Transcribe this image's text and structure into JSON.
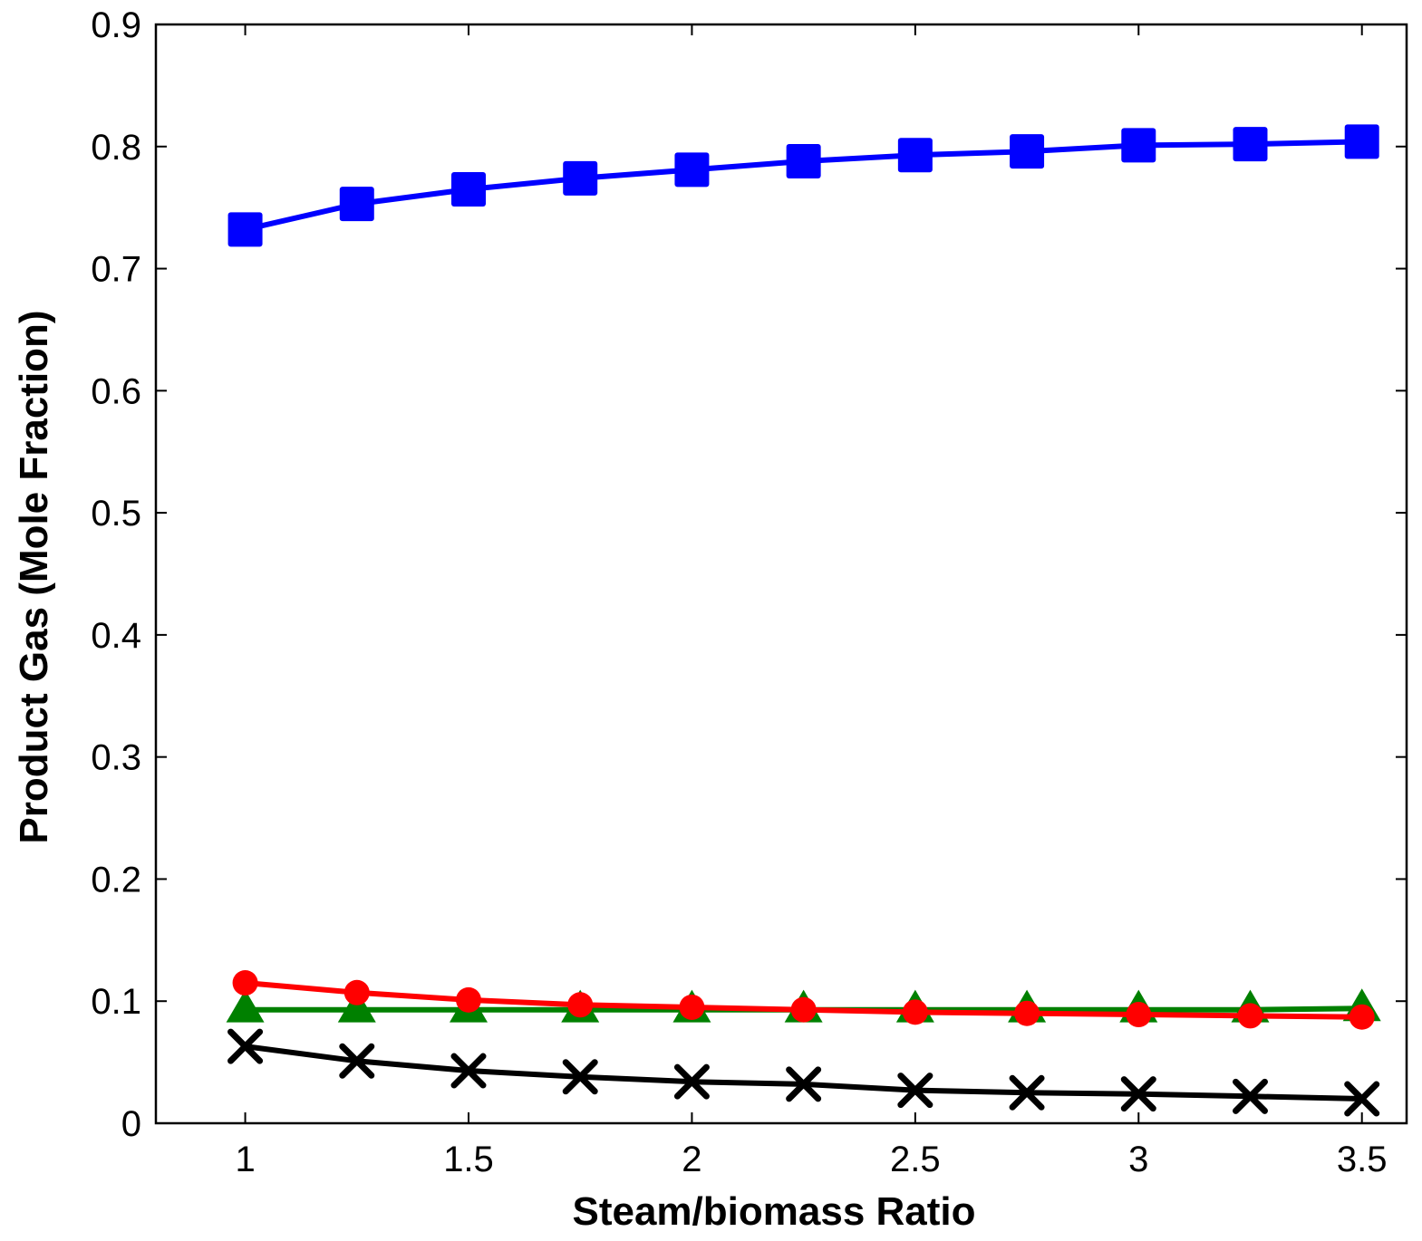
{
  "chart_data": {
    "type": "line",
    "title": "",
    "xlabel": "Steam/biomass Ratio",
    "ylabel": "Product Gas (Mole Fraction)",
    "xlim": [
      0.8,
      3.6
    ],
    "ylim": [
      0,
      0.9
    ],
    "grid": false,
    "legend": "none",
    "x_ticks": [
      {
        "value": 1,
        "label": "1"
      },
      {
        "value": 1.5,
        "label": "1.5"
      },
      {
        "value": 2,
        "label": "2"
      },
      {
        "value": 2.5,
        "label": "2.5"
      },
      {
        "value": 3,
        "label": "3"
      },
      {
        "value": 3.5,
        "label": "3.5"
      }
    ],
    "y_ticks": [
      {
        "value": 0,
        "label": "0"
      },
      {
        "value": 0.1,
        "label": "0.1"
      },
      {
        "value": 0.2,
        "label": "0.2"
      },
      {
        "value": 0.3,
        "label": "0.3"
      },
      {
        "value": 0.4,
        "label": "0.4"
      },
      {
        "value": 0.5,
        "label": "0.5"
      },
      {
        "value": 0.6,
        "label": "0.6"
      },
      {
        "value": 0.7,
        "label": "0.7"
      },
      {
        "value": 0.8,
        "label": "0.8"
      },
      {
        "value": 0.9,
        "label": "0.9"
      }
    ],
    "x": [
      1,
      1.25,
      1.5,
      1.75,
      2,
      2.25,
      2.5,
      2.75,
      3,
      3.25,
      3.5
    ],
    "series": [
      {
        "color": "#0000ff",
        "marker": "square",
        "values": [
          0.732,
          0.753,
          0.765,
          0.774,
          0.781,
          0.788,
          0.793,
          0.796,
          0.801,
          0.802,
          0.804
        ]
      },
      {
        "color": "#008000",
        "marker": "triangle",
        "values": [
          0.093,
          0.093,
          0.093,
          0.093,
          0.093,
          0.093,
          0.093,
          0.093,
          0.093,
          0.093,
          0.094
        ]
      },
      {
        "color": "#ff0000",
        "marker": "circle",
        "values": [
          0.115,
          0.107,
          0.101,
          0.097,
          0.095,
          0.093,
          0.091,
          0.09,
          0.089,
          0.088,
          0.087
        ]
      },
      {
        "color": "#000000",
        "marker": "x",
        "values": [
          0.063,
          0.051,
          0.043,
          0.038,
          0.034,
          0.032,
          0.027,
          0.025,
          0.024,
          0.022,
          0.02
        ]
      }
    ]
  }
}
